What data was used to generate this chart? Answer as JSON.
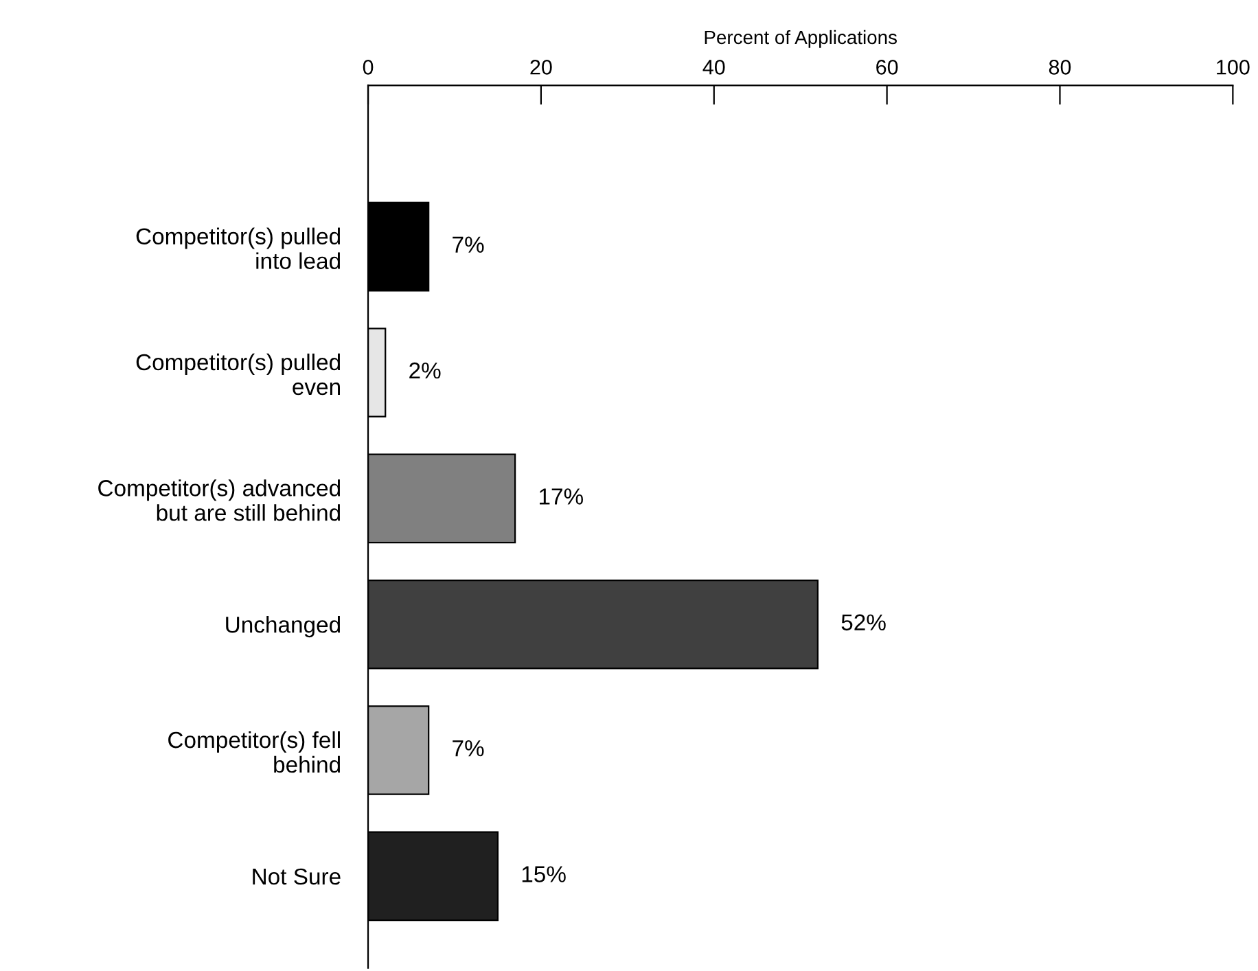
{
  "chart_data": {
    "type": "bar",
    "orientation": "horizontal",
    "xlabel": "Percent of Applications",
    "categories": [
      "Competitor(s) pulled\ninto lead",
      "Competitor(s) pulled\neven",
      "Competitor(s) advanced\nbut are still behind",
      "Unchanged",
      "Competitor(s) fell\nbehind",
      "Not Sure"
    ],
    "values": [
      7,
      2,
      17,
      52,
      7,
      15
    ],
    "colors": [
      "#000000",
      "#e6e6e6",
      "#808080",
      "#404040",
      "#a6a6a6",
      "#202020"
    ],
    "value_labels": [
      "7%",
      "2%",
      "17%",
      "52%",
      "7%",
      "15%"
    ],
    "xlim": [
      0,
      100
    ],
    "xticks": [
      0,
      20,
      40,
      60,
      80,
      100
    ],
    "grid": false,
    "legend": false
  }
}
